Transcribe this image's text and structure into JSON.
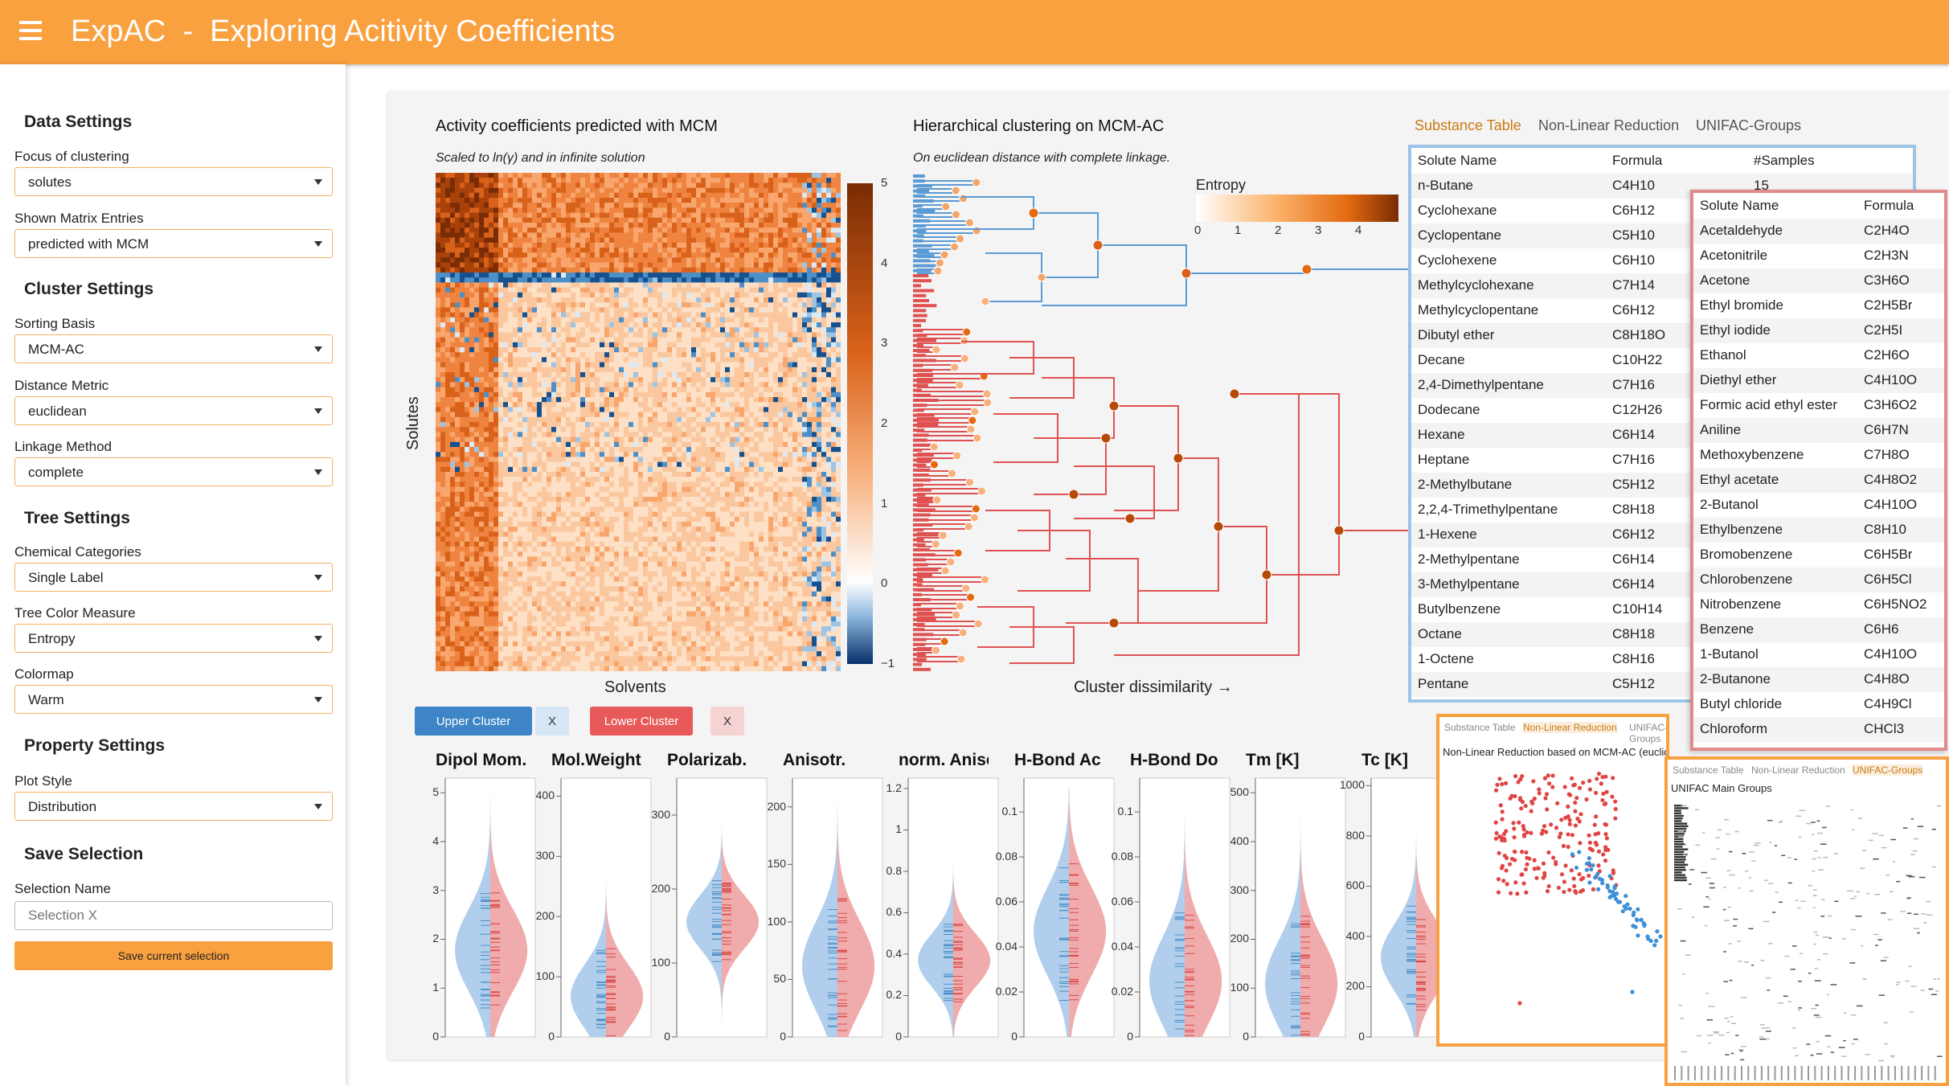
{
  "header": {
    "title": "ExpAC  -  Exploring Acitivity Coefficients",
    "menu_icon": "menu-icon"
  },
  "sidebar": {
    "data_settings": "Data Settings",
    "focus_label": "Focus of clustering",
    "focus_value": "solutes",
    "shown_label": "Shown Matrix Entries",
    "shown_value": "predicted with MCM",
    "cluster_settings": "Cluster Settings",
    "sorting_label": "Sorting Basis",
    "sorting_value": "MCM-AC",
    "distance_label": "Distance Metric",
    "distance_value": "euclidean",
    "linkage_label": "Linkage Method",
    "linkage_value": "complete",
    "tree_settings": "Tree Settings",
    "chem_label": "Chemical Categories",
    "chem_value": "Single Label",
    "treecolor_label": "Tree Color Measure",
    "treecolor_value": "Entropy",
    "colormap_label": "Colormap",
    "colormap_value": "Warm",
    "property_settings": "Property Settings",
    "plotstyle_label": "Plot Style",
    "plotstyle_value": "Distribution",
    "save_selection": "Save Selection",
    "selection_name_label": "Selection Name",
    "selection_name_placeholder": "Selection X",
    "save_button": "Save current selection"
  },
  "heatmap": {
    "title": "Activity coefficients predicted with MCM",
    "subtitle": "Scaled to ln(γ) and in infinite solution",
    "xlabel": "Solvents",
    "ylabel": "Solutes",
    "colorbar_ticks": [
      "5",
      "4",
      "3",
      "2",
      "1",
      "0",
      "−1"
    ],
    "colorbar_range": [
      -1,
      5
    ]
  },
  "dendrogram": {
    "title": "Hierarchical clustering on MCM-AC",
    "subtitle": "On euclidean distance with complete linkage.",
    "xlabel": "Cluster dissimilarity →",
    "legend_title": "Entropy",
    "legend_ticks": [
      "0",
      "1",
      "2",
      "3",
      "4"
    ],
    "upper_color": "#5b9bd5",
    "lower_color": "#e05252"
  },
  "cluster_buttons": {
    "upper": "Upper Cluster",
    "upper_x": "X",
    "lower": "Lower Cluster",
    "lower_x": "X",
    "upper_color": "#3d85c6",
    "lower_color": "#e85a5a"
  },
  "tabs": {
    "substance": "Substance Table",
    "nonlinear": "Non-Linear Reduction",
    "unifac": "UNIFAC-Groups"
  },
  "upper_table": {
    "headers": [
      "Solute Name",
      "Formula",
      "#Samples"
    ],
    "rows": [
      [
        "n-Butane",
        "C4H10",
        "15"
      ],
      [
        "Cyclohexane",
        "C6H12",
        ""
      ],
      [
        "Cyclopentane",
        "C5H10",
        ""
      ],
      [
        "Cyclohexene",
        "C6H10",
        ""
      ],
      [
        "Methylcyclohexane",
        "C7H14",
        ""
      ],
      [
        "Methylcyclopentane",
        "C6H12",
        ""
      ],
      [
        "Dibutyl ether",
        "C8H18O",
        ""
      ],
      [
        "Decane",
        "C10H22",
        ""
      ],
      [
        "2,4-Dimethylpentane",
        "C7H16",
        ""
      ],
      [
        "Dodecane",
        "C12H26",
        ""
      ],
      [
        "Hexane",
        "C6H14",
        ""
      ],
      [
        "Heptane",
        "C7H16",
        ""
      ],
      [
        "2-Methylbutane",
        "C5H12",
        ""
      ],
      [
        "2,2,4-Trimethylpentane",
        "C8H18",
        ""
      ],
      [
        "1-Hexene",
        "C6H12",
        ""
      ],
      [
        "2-Methylpentane",
        "C6H14",
        ""
      ],
      [
        "3-Methylpentane",
        "C6H14",
        ""
      ],
      [
        "Butylbenzene",
        "C10H14",
        ""
      ],
      [
        "Octane",
        "C8H18",
        ""
      ],
      [
        "1-Octene",
        "C8H16",
        ""
      ],
      [
        "Pentane",
        "C5H12",
        ""
      ]
    ]
  },
  "lower_table": {
    "headers": [
      "Solute Name",
      "Formula"
    ],
    "rows": [
      [
        "Acetaldehyde",
        "C2H4O"
      ],
      [
        "Acetonitrile",
        "C2H3N"
      ],
      [
        "Acetone",
        "C3H6O"
      ],
      [
        "Ethyl bromide",
        "C2H5Br"
      ],
      [
        "Ethyl iodide",
        "C2H5I"
      ],
      [
        "Ethanol",
        "C2H6O"
      ],
      [
        "Diethyl ether",
        "C4H10O"
      ],
      [
        "Formic acid ethyl ester",
        "C3H6O2"
      ],
      [
        "Aniline",
        "C6H7N"
      ],
      [
        "Methoxybenzene",
        "C7H8O"
      ],
      [
        "Ethyl acetate",
        "C4H8O2"
      ],
      [
        "2-Butanol",
        "C4H10O"
      ],
      [
        "Ethylbenzene",
        "C8H10"
      ],
      [
        "Bromobenzene",
        "C6H5Br"
      ],
      [
        "Chlorobenzene",
        "C6H5Cl"
      ],
      [
        "Nitrobenzene",
        "C6H5NO2"
      ],
      [
        "Benzene",
        "C6H6"
      ],
      [
        "1-Butanol",
        "C4H10O"
      ],
      [
        "2-Butanone",
        "C4H8O"
      ],
      [
        "Butyl chloride",
        "C4H9Cl"
      ],
      [
        "Chloroform",
        "CHCl3"
      ]
    ]
  },
  "nonlinear_panel": {
    "title": "Non-Linear Reduction based on MCM-AC (euclidean"
  },
  "unifac_panel": {
    "title": "UNIFAC Main Groups"
  },
  "properties": [
    {
      "title": "Dipol Mom.",
      "ticks": [
        "5",
        "4",
        "3",
        "2",
        "1",
        "0"
      ],
      "range": [
        0,
        5.3
      ]
    },
    {
      "title": "Mol.Weight",
      "ticks": [
        "400",
        "300",
        "200",
        "100",
        "0"
      ],
      "range": [
        0,
        430
      ]
    },
    {
      "title": "Polarizab.",
      "ticks": [
        "300",
        "200",
        "100",
        "0"
      ],
      "range": [
        0,
        350
      ]
    },
    {
      "title": "Anisotr.",
      "ticks": [
        "200",
        "150",
        "100",
        "50",
        "0"
      ],
      "range": [
        0,
        225
      ]
    },
    {
      "title": "norm. Aniso",
      "ticks": [
        "1.2",
        "1",
        "0.8",
        "0.6",
        "0.4",
        "0.2",
        "0"
      ],
      "range": [
        0,
        1.25
      ]
    },
    {
      "title": "H-Bond Ac",
      "ticks": [
        "0.1",
        "0.08",
        "0.06",
        "0.04",
        "0.02",
        "0"
      ],
      "range": [
        0,
        0.115
      ]
    },
    {
      "title": "H-Bond Do",
      "ticks": [
        "0.1",
        "0.08",
        "0.06",
        "0.04",
        "0.02",
        "0"
      ],
      "range": [
        0,
        0.115
      ]
    },
    {
      "title": "Tm [K]",
      "ticks": [
        "500",
        "400",
        "300",
        "200",
        "100",
        "0"
      ],
      "range": [
        0,
        530
      ]
    },
    {
      "title": "Tc [K]",
      "ticks": [
        "1000",
        "800",
        "600",
        "400",
        "200",
        "0"
      ],
      "range": [
        0,
        1030
      ]
    }
  ]
}
